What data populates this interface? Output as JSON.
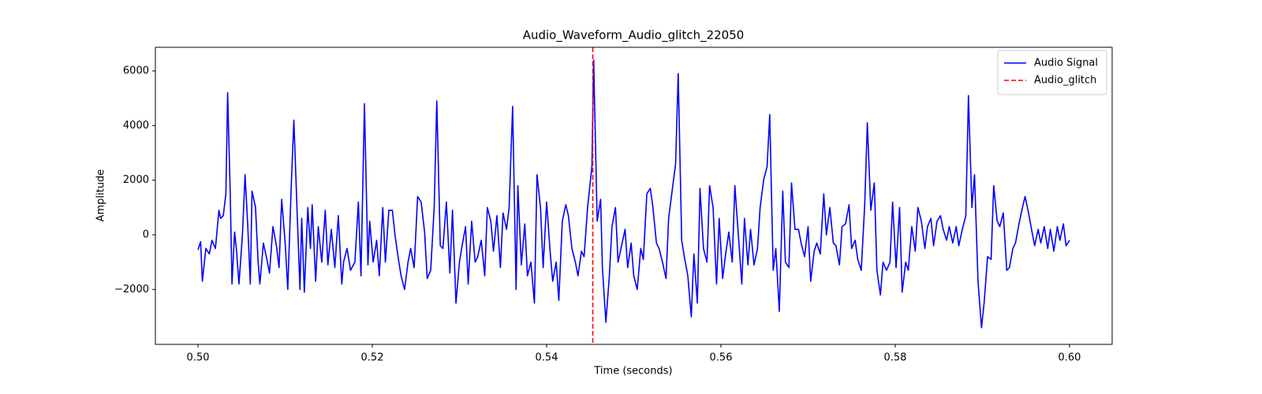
{
  "chart_data": {
    "type": "line",
    "title": "Audio_Waveform_Audio_glitch_22050",
    "xlabel": "Time (seconds)",
    "ylabel": "Amplitude",
    "xlim": [
      0.49511,
      0.60489
    ],
    "ylim": [
      -4010,
      6865
    ],
    "xticks": [
      {
        "value": 0.5,
        "label": "0.50"
      },
      {
        "value": 0.52,
        "label": "0.52"
      },
      {
        "value": 0.54,
        "label": "0.54"
      },
      {
        "value": 0.56,
        "label": "0.56"
      },
      {
        "value": 0.58,
        "label": "0.58"
      },
      {
        "value": 0.6,
        "label": "0.60"
      }
    ],
    "yticks": [
      {
        "value": -2000,
        "label": "−2000"
      },
      0,
      2000,
      4000,
      6000
    ],
    "grid": false,
    "legend": "upper right",
    "x": [
      0.5,
      0.5003,
      0.5005,
      0.5009,
      0.5013,
      0.5016,
      0.502,
      0.5024,
      0.5026,
      0.5029,
      0.5032,
      0.5034,
      0.5037,
      0.5039,
      0.5042,
      0.5044,
      0.5047,
      0.5051,
      0.5054,
      0.5057,
      0.506,
      0.5062,
      0.5066,
      0.5069,
      0.5071,
      0.5075,
      0.5079,
      0.5082,
      0.5086,
      0.509,
      0.5093,
      0.5096,
      0.51,
      0.5103,
      0.5107,
      0.511,
      0.5114,
      0.5117,
      0.5119,
      0.5122,
      0.5126,
      0.5129,
      0.5131,
      0.5135,
      0.5138,
      0.5142,
      0.5146,
      0.5149,
      0.5153,
      0.5157,
      0.5161,
      0.5165,
      0.5167,
      0.5171,
      0.5175,
      0.518,
      0.5184,
      0.5187,
      0.5191,
      0.5195,
      0.5197,
      0.5201,
      0.5205,
      0.5208,
      0.5212,
      0.5215,
      0.5219,
      0.5223,
      0.5226,
      0.523,
      0.5233,
      0.5237,
      0.5241,
      0.5244,
      0.5248,
      0.5252,
      0.5256,
      0.526,
      0.5263,
      0.5267,
      0.5271,
      0.5274,
      0.5278,
      0.5281,
      0.5285,
      0.5289,
      0.5292,
      0.5296,
      0.53,
      0.5303,
      0.5307,
      0.531,
      0.5314,
      0.5318,
      0.5321,
      0.5325,
      0.5329,
      0.5332,
      0.5336,
      0.5339,
      0.5343,
      0.5347,
      0.535,
      0.5354,
      0.5357,
      0.5361,
      0.5365,
      0.5367,
      0.5371,
      0.5375,
      0.5378,
      0.5382,
      0.5386,
      0.5389,
      0.5393,
      0.5396,
      0.54,
      0.5404,
      0.5407,
      0.5411,
      0.5414,
      0.5418,
      0.5422,
      0.5425,
      0.5429,
      0.5433,
      0.5436,
      0.544,
      0.5443,
      0.5447,
      0.5452,
      0.5454,
      0.5458,
      0.5462,
      0.5464,
      0.5468,
      0.5472,
      0.5475,
      0.5479,
      0.5482,
      0.5486,
      0.549,
      0.5493,
      0.5497,
      0.55,
      0.5504,
      0.5508,
      0.5511,
      0.5515,
      0.5519,
      0.5522,
      0.5526,
      0.5529,
      0.5533,
      0.5537,
      0.554,
      0.5544,
      0.5548,
      0.5551,
      0.5555,
      0.5558,
      0.5562,
      0.5566,
      0.5569,
      0.5573,
      0.5576,
      0.558,
      0.5584,
      0.5587,
      0.5591,
      0.5595,
      0.5598,
      0.5602,
      0.5605,
      0.5609,
      0.5613,
      0.5616,
      0.562,
      0.5624,
      0.5627,
      0.5631,
      0.5634,
      0.5638,
      0.5642,
      0.5645,
      0.5649,
      0.5653,
      0.5656,
      0.566,
      0.5663,
      0.5667,
      0.5671,
      0.5674,
      0.5678,
      0.5681,
      0.5685,
      0.5689,
      0.5692,
      0.5696,
      0.57,
      0.5703,
      0.5707,
      0.571,
      0.5714,
      0.5718,
      0.5721,
      0.5725,
      0.5729,
      0.5732,
      0.5736,
      0.5739,
      0.5743,
      0.5747,
      0.575,
      0.5754,
      0.5757,
      0.5761,
      0.5765,
      0.5768,
      0.5772,
      0.5776,
      0.5779,
      0.5783,
      0.5786,
      0.579,
      0.5794,
      0.5797,
      0.5801,
      0.5805,
      0.5808,
      0.5812,
      0.5815,
      0.5819,
      0.5823,
      0.5826,
      0.583,
      0.5834,
      0.5837,
      0.5841,
      0.5844,
      0.5848,
      0.5852,
      0.5855,
      0.5859,
      0.5862,
      0.5866,
      0.587,
      0.5873,
      0.5877,
      0.5881,
      0.5884,
      0.5888,
      0.5891,
      0.5895,
      0.5899,
      0.5902,
      0.5906,
      0.591,
      0.5913,
      0.5917,
      0.592,
      0.5924,
      0.5928,
      0.5931,
      0.5935,
      0.5938,
      0.5942,
      0.5946,
      0.5949,
      0.5953,
      0.5957,
      0.596,
      0.5964,
      0.5967,
      0.5971,
      0.5975,
      0.5978,
      0.5982,
      0.5986,
      0.5989,
      0.5993,
      0.5996,
      0.6
    ],
    "series": [
      {
        "name": "Audio Signal",
        "color": "#0000ff",
        "values": [
          -550,
          -250,
          -1700,
          -500,
          -700,
          -200,
          -500,
          900,
          600,
          700,
          1500,
          5200,
          1500,
          -1800,
          100,
          -500,
          -1800,
          0,
          2200,
          400,
          -1800,
          1600,
          1000,
          -1000,
          -1800,
          -300,
          -900,
          -1400,
          300,
          -400,
          -1200,
          1300,
          -300,
          -2000,
          1800,
          4200,
          600,
          -2000,
          600,
          -2100,
          1000,
          -500,
          1100,
          -1700,
          300,
          -1000,
          900,
          -1100,
          200,
          -1200,
          700,
          -1800,
          -1000,
          -500,
          -1300,
          -1000,
          1200,
          -1500,
          4800,
          -1100,
          500,
          -1000,
          -200,
          -1500,
          1000,
          -1000,
          900,
          900,
          0,
          -900,
          -1500,
          -2000,
          -1000,
          -500,
          -1200,
          1400,
          1200,
          100,
          -1600,
          -1300,
          1000,
          4900,
          -400,
          -500,
          1200,
          -1400,
          900,
          -2500,
          -1000,
          -400,
          300,
          -1800,
          500,
          -1000,
          -800,
          -200,
          -1500,
          1000,
          500,
          -600,
          700,
          -1200,
          800,
          200,
          1000,
          4700,
          -2000,
          1800,
          -1100,
          400,
          -1500,
          -1000,
          -2500,
          2200,
          1000,
          -1200,
          1200,
          -600,
          -1700,
          -1000,
          -2400,
          500,
          1100,
          700,
          -500,
          -1000,
          -1500,
          -600,
          -800,
          1000,
          2500,
          6400,
          500,
          1300,
          -1200,
          -3200,
          -1500,
          300,
          1000,
          -1000,
          -400,
          200,
          -1200,
          -300,
          -1500,
          -2000,
          -500,
          -900,
          1500,
          1700,
          1000,
          -300,
          -500,
          -1000,
          -1600,
          600,
          1600,
          2600,
          5900,
          -200,
          -800,
          -1500,
          -3000,
          -700,
          -2500,
          1700,
          -500,
          -1000,
          1800,
          1000,
          -1800,
          600,
          -1600,
          -800,
          100,
          -1000,
          1800,
          0,
          -1800,
          600,
          -1100,
          200,
          -1100,
          -500,
          1000,
          2000,
          2500,
          4400,
          -1300,
          -500,
          -2800,
          1600,
          -1000,
          -1200,
          1900,
          200,
          200,
          -300,
          -800,
          300,
          -1700,
          -600,
          -300,
          -700,
          1500,
          0,
          1000,
          -300,
          -400,
          -1100,
          300,
          400,
          1100,
          -500,
          -200,
          -900,
          -1300,
          1100,
          4100,
          900,
          1900,
          -1300,
          -2200,
          -1000,
          -1300,
          -1000,
          1200,
          -1200,
          1000,
          -2100,
          -1000,
          -1300,
          300,
          -600,
          1000,
          500,
          -500,
          300,
          600,
          -400,
          500,
          700,
          200,
          -200,
          300,
          -300,
          300,
          -400,
          200,
          700,
          5100,
          1000,
          2200,
          -1700,
          -3400,
          -2500,
          -800,
          -900,
          1800,
          500,
          300,
          800,
          -1300,
          -1200,
          -500,
          -300,
          400,
          1000,
          1400,
          800,
          100,
          -400,
          200,
          -300,
          300,
          -500,
          200,
          -600,
          300,
          -200,
          400,
          -400,
          -200
        ]
      }
    ],
    "markers": [
      {
        "x": 0.5453,
        "name": "Audio_glitch",
        "color": "#ff0000"
      }
    ]
  }
}
